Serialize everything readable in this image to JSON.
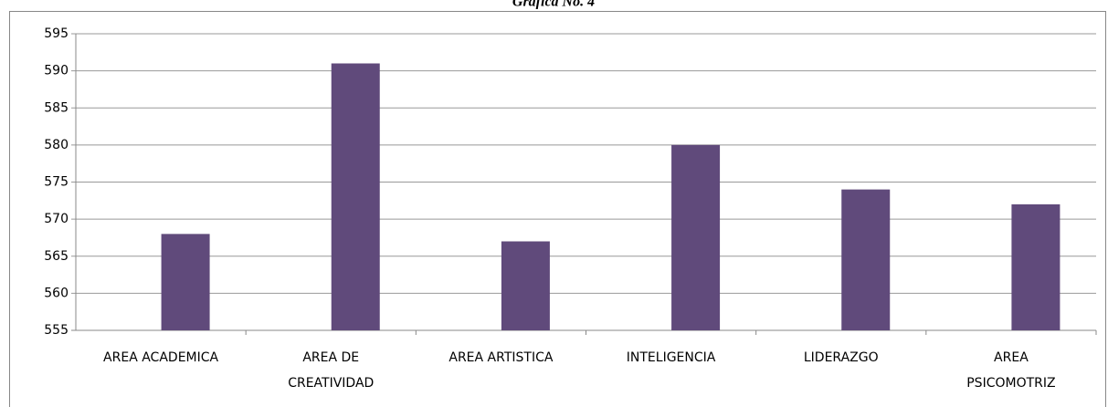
{
  "chart_data": {
    "type": "bar",
    "title": "Gráfica No. 4",
    "categories": [
      [
        "AREA ACADEMICA"
      ],
      [
        "AREA DE",
        "CREATIVIDAD"
      ],
      [
        "AREA ARTISTICA"
      ],
      [
        "INTELIGENCIA"
      ],
      [
        "LIDERAZGO"
      ],
      [
        "AREA",
        "PSICOMOTRIZ"
      ]
    ],
    "values": [
      568,
      591,
      567,
      580,
      574,
      572
    ],
    "color": "#604a7b",
    "ylim": [
      555,
      595
    ],
    "yticks": [
      555,
      560,
      565,
      570,
      575,
      580,
      585,
      590,
      595
    ],
    "grid": true
  }
}
